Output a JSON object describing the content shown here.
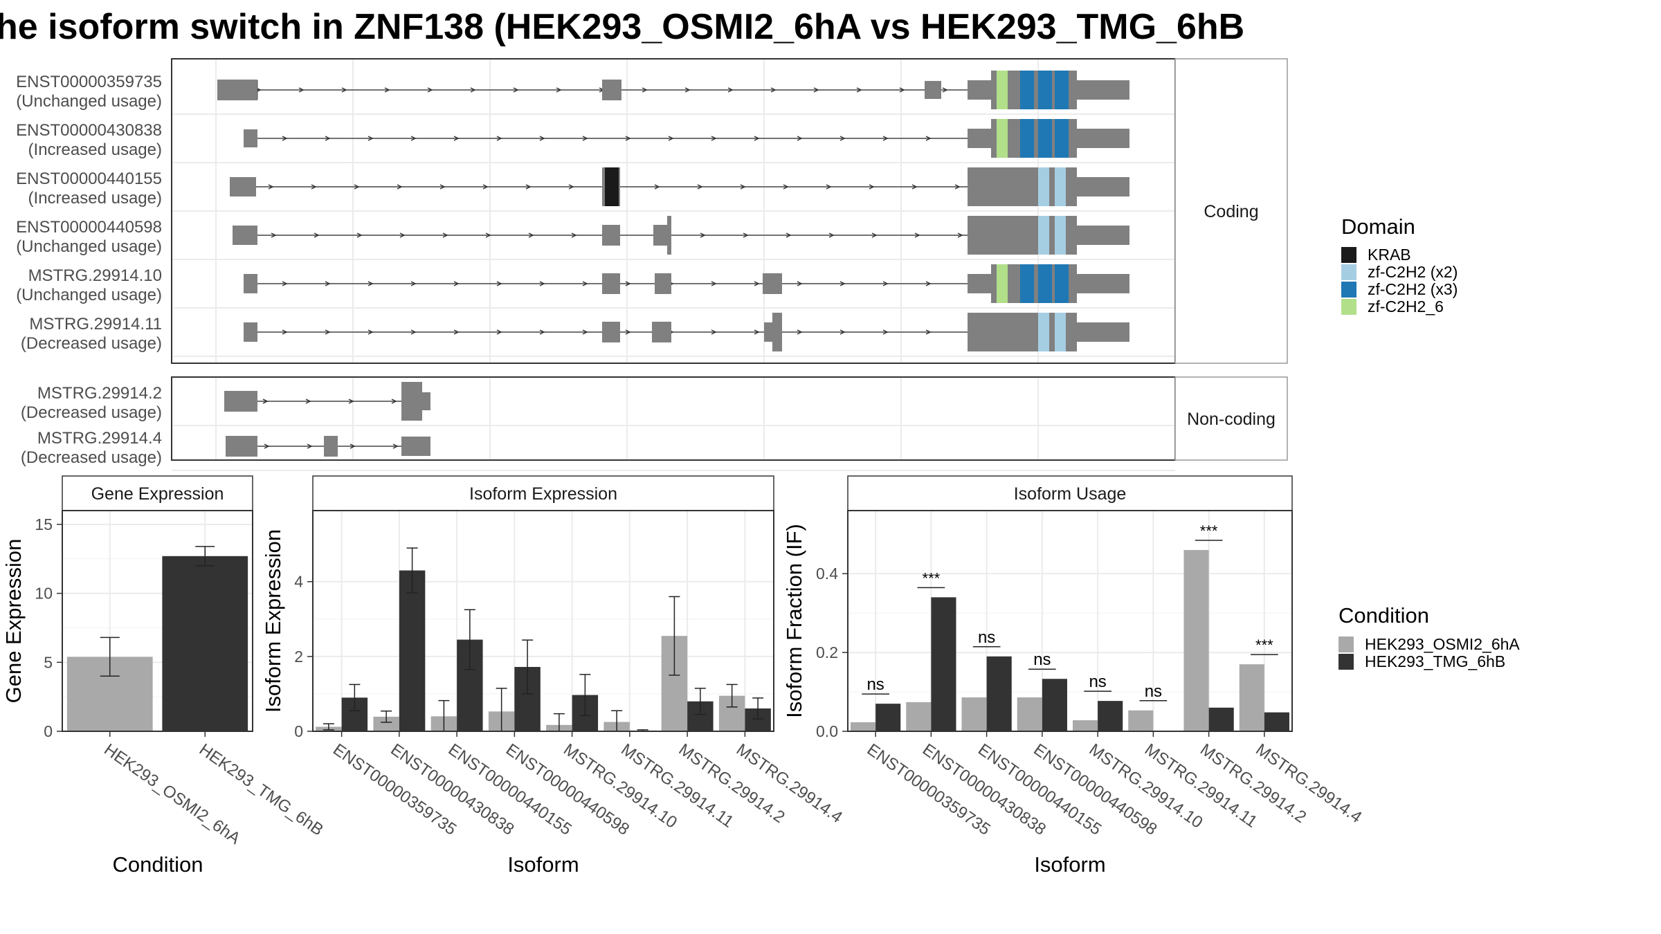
{
  "title": "he isoform switch in ZNF138 (HEK293_OSMI2_6hA vs HEK293_TMG_6hB",
  "colors": {
    "KRAB": "#1a1a1a",
    "zf_x2": "#a6cee3",
    "zf_x3": "#1f78b4",
    "zf_6": "#b2df8a",
    "exon": "#808080",
    "cond_a": "#a9a9a9",
    "cond_b": "#333333"
  },
  "structure": {
    "facets": [
      "Coding",
      "Non-coding"
    ],
    "coding_isoforms": [
      {
        "name": "ENST00000359735",
        "usage": "(Unchanged usage)"
      },
      {
        "name": "ENST00000430838",
        "usage": "(Increased usage)"
      },
      {
        "name": "ENST00000440155",
        "usage": "(Increased usage)"
      },
      {
        "name": "ENST00000440598",
        "usage": "(Unchanged usage)"
      },
      {
        "name": "MSTRG.29914.10",
        "usage": "(Unchanged usage)"
      },
      {
        "name": "MSTRG.29914.11",
        "usage": "(Decreased usage)"
      }
    ],
    "noncoding_isoforms": [
      {
        "name": "MSTRG.29914.2",
        "usage": "(Decreased usage)"
      },
      {
        "name": "MSTRG.29914.4",
        "usage": "(Decreased usage)"
      }
    ]
  },
  "legends": {
    "domain": {
      "title": "Domain",
      "items": [
        {
          "label": "KRAB",
          "color": "#1a1a1a"
        },
        {
          "label": "zf-C2H2 (x2)",
          "color": "#a6cee3"
        },
        {
          "label": "zf-C2H2 (x3)",
          "color": "#1f78b4"
        },
        {
          "label": "zf-C2H2_6",
          "color": "#b2df8a"
        }
      ]
    },
    "condition": {
      "title": "Condition",
      "items": [
        {
          "label": "HEK293_OSMI2_6hA",
          "color": "#a9a9a9"
        },
        {
          "label": "HEK293_TMG_6hB",
          "color": "#333333"
        }
      ]
    }
  },
  "chart_data": [
    {
      "type": "bar",
      "title": "Gene Expression",
      "xlabel": "Condition",
      "ylabel": "Gene Expression",
      "ylim": [
        0,
        16
      ],
      "yticks": [
        0,
        5,
        10,
        15
      ],
      "categories": [
        "HEK293_OSMI2_6hA",
        "HEK293_TMG_6hB"
      ],
      "values": [
        5.4,
        12.7
      ],
      "errors": [
        1.4,
        0.7
      ]
    },
    {
      "type": "bar",
      "title": "Isoform Expression",
      "xlabel": "Isoform",
      "ylabel": "Isoform Expression",
      "ylim": [
        0,
        5.9
      ],
      "yticks": [
        0,
        2,
        4
      ],
      "categories": [
        "ENST00000359735",
        "ENST00000430838",
        "ENST00000440155",
        "ENST00000440598",
        "MSTRG.29914.10",
        "MSTRG.29914.11",
        "MSTRG.29914.2",
        "MSTRG.29914.4"
      ],
      "series": [
        {
          "name": "HEK293_OSMI2_6hA",
          "values": [
            0.12,
            0.39,
            0.4,
            0.53,
            0.17,
            0.25,
            2.55,
            0.95
          ],
          "errors": [
            0.08,
            0.15,
            0.42,
            0.62,
            0.3,
            0.3,
            1.05,
            0.3
          ]
        },
        {
          "name": "HEK293_TMG_6hB",
          "values": [
            0.9,
            4.3,
            2.45,
            1.72,
            0.97,
            0.02,
            0.8,
            0.61
          ],
          "errors": [
            0.35,
            0.6,
            0.8,
            0.72,
            0.55,
            0.02,
            0.35,
            0.28
          ]
        }
      ]
    },
    {
      "type": "bar",
      "title": "Isoform Usage",
      "xlabel": "Isoform",
      "ylabel": "Isoform Fraction (IF)",
      "ylim": [
        0,
        0.56
      ],
      "yticks": [
        0.0,
        0.2,
        0.4
      ],
      "categories": [
        "ENST00000359735",
        "ENST00000430838",
        "ENST00000440155",
        "ENST00000440598",
        "MSTRG.29914.10",
        "MSTRG.29914.11",
        "MSTRG.29914.2",
        "MSTRG.29914.4"
      ],
      "series": [
        {
          "name": "HEK293_OSMI2_6hA",
          "values": [
            0.023,
            0.074,
            0.086,
            0.086,
            0.028,
            0.053,
            0.46,
            0.17
          ]
        },
        {
          "name": "HEK293_TMG_6hB",
          "values": [
            0.07,
            0.34,
            0.19,
            0.133,
            0.077,
            0.0,
            0.06,
            0.048
          ]
        }
      ],
      "significance": [
        "ns",
        "***",
        "ns",
        "ns",
        "ns",
        "ns",
        "***",
        "***"
      ]
    }
  ]
}
